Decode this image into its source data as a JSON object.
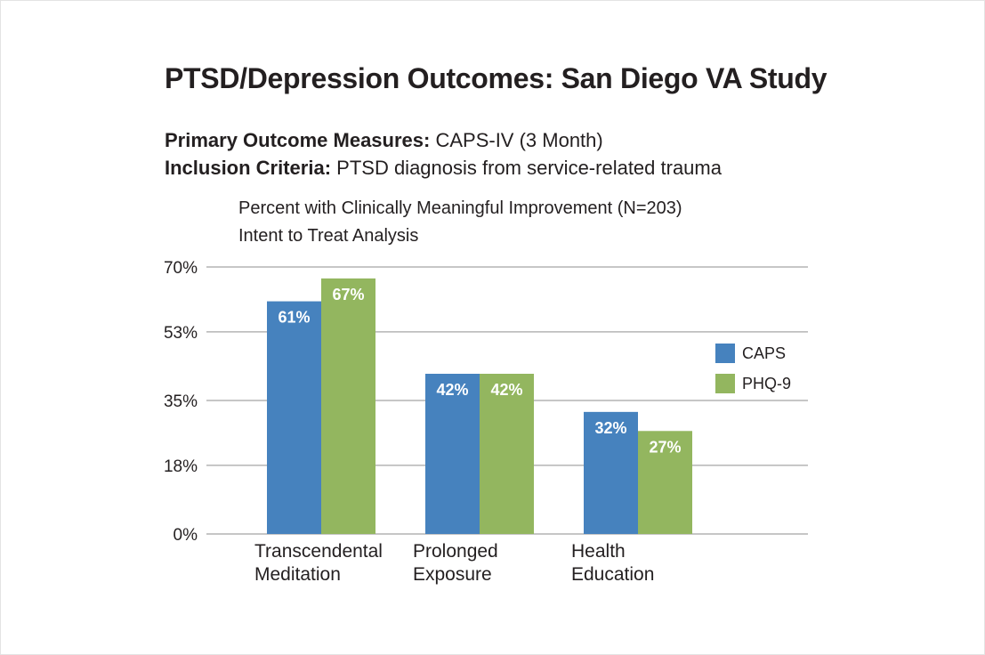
{
  "header": {
    "title": "PTSD/Depression Outcomes: San Diego VA Study",
    "primary_label": "Primary Outcome Measures:",
    "primary_value": " CAPS-IV (3 Month)",
    "inclusion_label": "Inclusion Criteria:",
    "inclusion_value": " PTSD diagnosis from service-related trauma"
  },
  "chart_data": {
    "type": "bar",
    "title": "Percent with Clinically Meaningful Improvement (N=203)",
    "subtitle": "Intent to Treat Analysis",
    "categories": [
      [
        "Transcendental",
        "Meditation"
      ],
      [
        "Prolonged",
        "Exposure"
      ],
      [
        "Health",
        "Education"
      ]
    ],
    "series": [
      {
        "name": "CAPS",
        "color": "#4682be",
        "values": [
          61,
          42,
          32
        ],
        "labels": [
          "61%",
          "42%",
          "32%"
        ]
      },
      {
        "name": "PHQ-9",
        "color": "#93b65f",
        "values": [
          67,
          42,
          27
        ],
        "labels": [
          "67%",
          "42%",
          "27%"
        ]
      }
    ],
    "ylim": [
      0,
      70
    ],
    "yticks": [
      {
        "value": 0,
        "label": "0%"
      },
      {
        "value": 18,
        "label": "18%"
      },
      {
        "value": 35,
        "label": "35%"
      },
      {
        "value": 53,
        "label": "53%"
      },
      {
        "value": 70,
        "label": "70%"
      }
    ],
    "xlabel": "",
    "ylabel": "",
    "grid": true,
    "legend_position": "right"
  }
}
